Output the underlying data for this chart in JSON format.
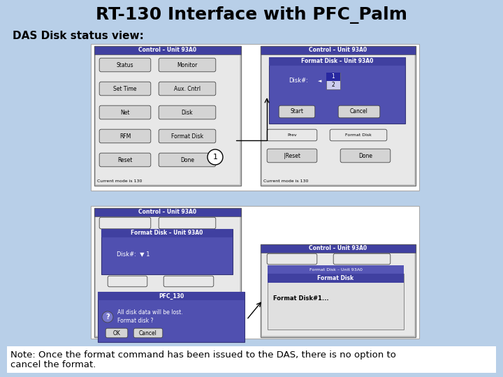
{
  "title": "RT-130 Interface with PFC_Palm",
  "subtitle": "DAS Disk status view:",
  "bg_color": "#b8cfe8",
  "note_line1": "Note: Once the format command has been issued to the DAS, there is no option to",
  "note_line2": "cancel the format.",
  "title_fontsize": 18,
  "subtitle_fontsize": 11,
  "note_fontsize": 9.5,
  "purple": "#4040a0",
  "purple_mid": "#5555b5",
  "white": "#ffffff",
  "light_gray": "#e8e8e8",
  "btn_bg": "#d4d4d4",
  "dark_bg": "#5050b0"
}
